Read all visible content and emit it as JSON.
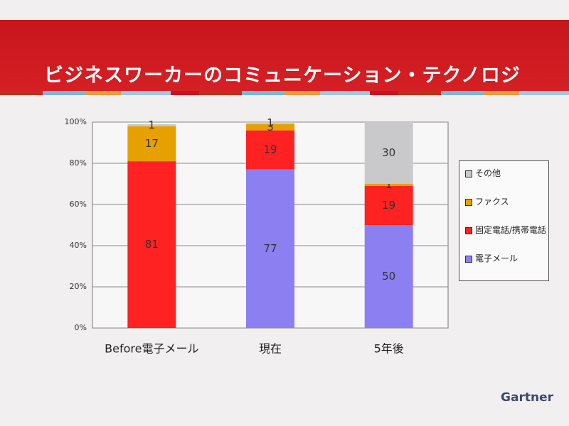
{
  "brand": "Gartner",
  "chart_data": {
    "type": "stacked-bar",
    "title": "ビジネスワーカーのコミュニケーション・テクノロジ",
    "categories": [
      "Before電子メール",
      "現在",
      "5年後"
    ],
    "series": [
      {
        "name": "電子メール",
        "color": "#8b7ff2",
        "values": [
          0,
          77,
          50
        ]
      },
      {
        "name": "固定電話/携帯電話",
        "color": "#ff2222",
        "values": [
          81,
          19,
          19
        ]
      },
      {
        "name": "ファクス",
        "color": "#e6a000",
        "values": [
          17,
          3,
          1
        ]
      },
      {
        "name": "その他",
        "color": "#c9c9cc",
        "values": [
          1,
          1,
          30
        ]
      }
    ],
    "ylim": [
      0,
      100
    ],
    "yticks": [
      {
        "value": 0,
        "label": "0%"
      },
      {
        "value": 20,
        "label": "20%"
      },
      {
        "value": 40,
        "label": "40%"
      },
      {
        "value": 60,
        "label": "60%"
      },
      {
        "value": 80,
        "label": "80%"
      },
      {
        "value": 100,
        "label": "100%"
      }
    ],
    "grid": true,
    "legend": "right"
  }
}
